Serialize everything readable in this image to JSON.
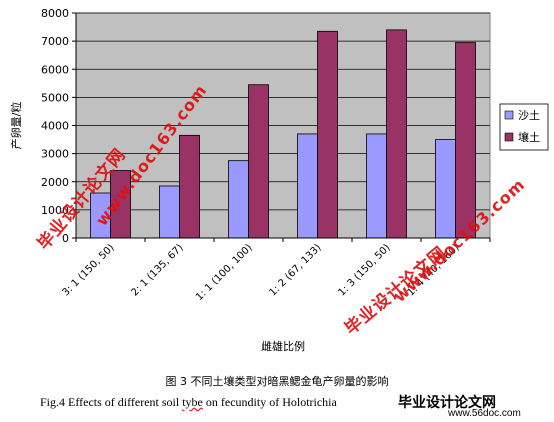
{
  "chart_data": {
    "type": "bar",
    "categories": [
      "3: 1 (150, 50)",
      "2: 1 (135, 67)",
      "1: 1 (100, 100)",
      "1: 2 (67, 133)",
      "1: 3 (150, 50)",
      "1: 4 (40, 160)"
    ],
    "series": [
      {
        "name": "沙土",
        "values": [
          1600,
          1850,
          2750,
          3700,
          3700,
          3500
        ],
        "color": "#9999ff"
      },
      {
        "name": "壤土",
        "values": [
          2400,
          3650,
          5450,
          7350,
          7400,
          6950
        ],
        "color": "#993366"
      }
    ],
    "ylim": [
      0,
      8000
    ],
    "yticks": [
      0,
      1000,
      2000,
      3000,
      4000,
      5000,
      6000,
      7000,
      8000
    ],
    "ylabel": "产卵量/粒",
    "xlabel": "雌雄比例",
    "grid": true,
    "legend_position": "right",
    "plot_background": "#c0c0c0"
  },
  "captions": {
    "chinese": "图 3   不同土壤类型对暗黑鳃金龟产卵量的影响",
    "english_prefix": "Fig.4     Effects of different soil",
    "english_squiggle": "tybe",
    "english_suffix": "on fecundity of Holotrichia"
  },
  "watermarks": {
    "text_a": "毕业设计论文网",
    "text_b": "www.doc163.com",
    "logo_text": "毕业设计论文网",
    "logo_url": "www.56doc.com"
  }
}
